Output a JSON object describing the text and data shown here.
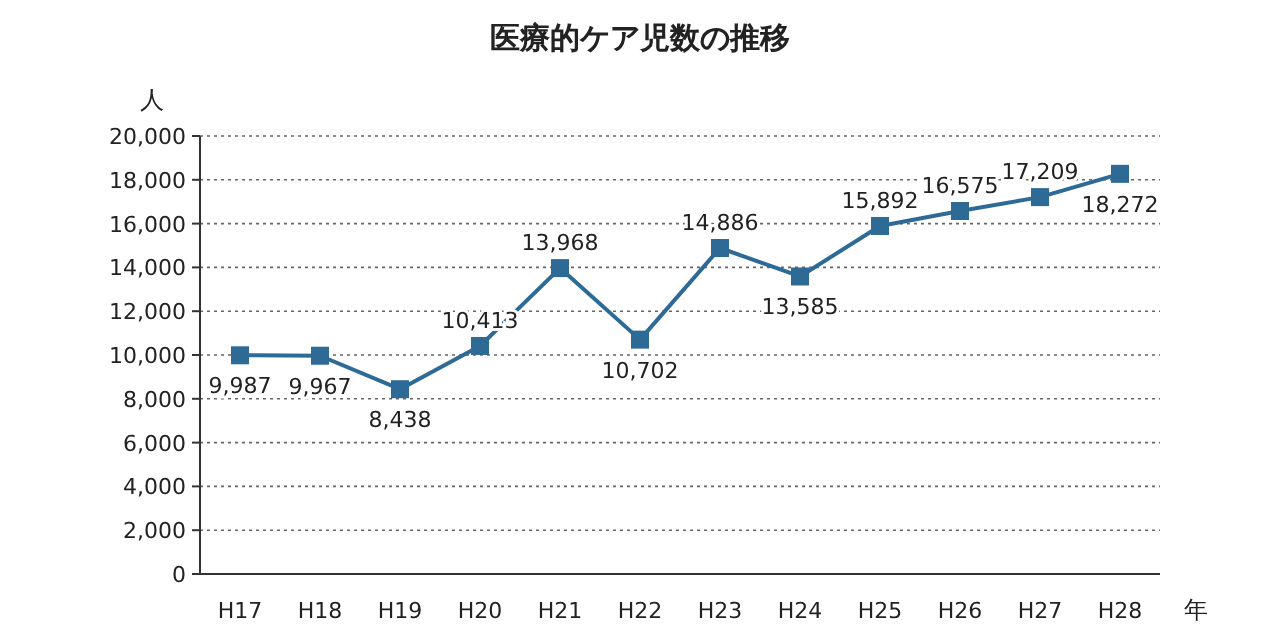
{
  "chart_data": {
    "type": "line",
    "title": "医療的ケア児数の推移",
    "ylabel": "人",
    "xlabel": "年",
    "categories": [
      "H17",
      "H18",
      "H19",
      "H20",
      "H21",
      "H22",
      "H23",
      "H24",
      "H25",
      "H26",
      "H27",
      "H28"
    ],
    "series": [
      {
        "color": "#2e6a96",
        "values": [
          9987,
          9967,
          8438,
          10413,
          13968,
          10702,
          14886,
          13585,
          15892,
          16575,
          17209,
          18272
        ]
      }
    ],
    "ylim": [
      0,
      20000
    ],
    "yticks": [
      {
        "value": 0,
        "label": "0"
      },
      {
        "value": 2000,
        "label": "2,000"
      },
      {
        "value": 4000,
        "label": "4,000"
      },
      {
        "value": 6000,
        "label": "6,000"
      },
      {
        "value": 8000,
        "label": "8,000"
      },
      {
        "value": 10000,
        "label": "10,000"
      },
      {
        "value": 12000,
        "label": "12,000"
      },
      {
        "value": 14000,
        "label": "14,000"
      },
      {
        "value": 16000,
        "label": "16,000"
      },
      {
        "value": 18000,
        "label": "18,000"
      },
      {
        "value": 20000,
        "label": "20,000"
      }
    ],
    "value_labels": [
      "9,987",
      "9,967",
      "8,438",
      "10,413",
      "13,968",
      "10,702",
      "14,886",
      "13,585",
      "15,892",
      "16,575",
      "17,209",
      "18,272"
    ],
    "grid": "y",
    "marker": "square",
    "line_style": "solid"
  }
}
